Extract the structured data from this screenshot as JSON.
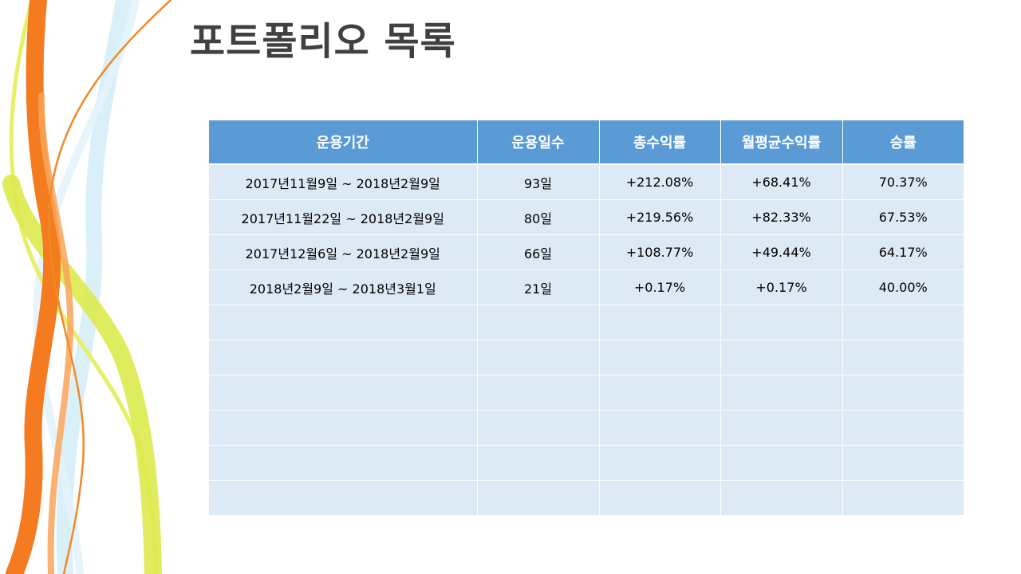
{
  "slide": {
    "title": "포트폴리오 목록"
  },
  "table": {
    "headers": [
      "운용기간",
      "운용일수",
      "총수익률",
      "월평균수익률",
      "승률"
    ],
    "rows": [
      [
        "2017년11월9일 ~ 2018년2월9일",
        "93일",
        "+212.08%",
        "+68.41%",
        "70.37%"
      ],
      [
        "2017년11월22일 ~ 2018년2월9일",
        "80일",
        "+219.56%",
        "+82.33%",
        "67.53%"
      ],
      [
        "2017년12월6일 ~ 2018년2월9일",
        "66일",
        "+108.77%",
        "+49.44%",
        "64.17%"
      ],
      [
        "2018년2월9일 ~ 2018년3월1일",
        "21일",
        "+0.17%",
        "+0.17%",
        "40.00%"
      ],
      [
        "",
        "",
        "",
        "",
        ""
      ],
      [
        "",
        "",
        "",
        "",
        ""
      ],
      [
        "",
        "",
        "",
        "",
        ""
      ],
      [
        "",
        "",
        "",
        "",
        ""
      ],
      [
        "",
        "",
        "",
        "",
        ""
      ],
      [
        "",
        "",
        "",
        "",
        ""
      ]
    ]
  },
  "theme": {
    "header_bg": "#5b9bd5",
    "cell_bg": "#dde9f5",
    "title_color": "#404040",
    "ribbon_orange": "#f47b20",
    "ribbon_lime": "#dcea4c",
    "ribbon_blue": "#cdeaf7"
  }
}
